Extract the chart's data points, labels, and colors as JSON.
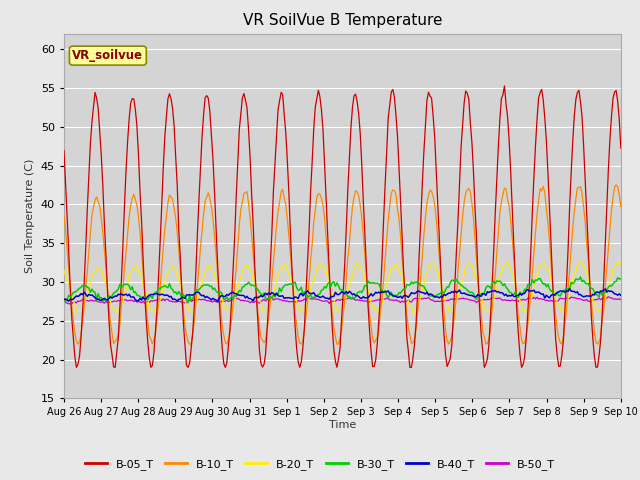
{
  "title": "VR SoilVue B Temperature",
  "ylabel": "Soil Temperature (C)",
  "xlabel": "Time",
  "ylim": [
    15,
    62
  ],
  "yticks": [
    15,
    20,
    25,
    30,
    35,
    40,
    45,
    50,
    55,
    60
  ],
  "fig_bg": "#e8e8e8",
  "plot_bg": "#d4d4d4",
  "legend_label": "VR_soilvue",
  "series_colors": {
    "B-05_T": "#cc0000",
    "B-10_T": "#ff8800",
    "B-20_T": "#ffee00",
    "B-30_T": "#00cc00",
    "B-40_T": "#0000cc",
    "B-50_T": "#cc00cc"
  },
  "day_labels": [
    "Aug 26",
    "Aug 27",
    "Aug 28",
    "Aug 29",
    "Aug 30",
    "Aug 31",
    "Sep 1",
    "Sep 2",
    "Sep 3",
    "Sep 4",
    "Sep 5",
    "Sep 6",
    "Sep 7",
    "Sep 8",
    "Sep 9",
    "Sep 10"
  ],
  "num_days": 15
}
